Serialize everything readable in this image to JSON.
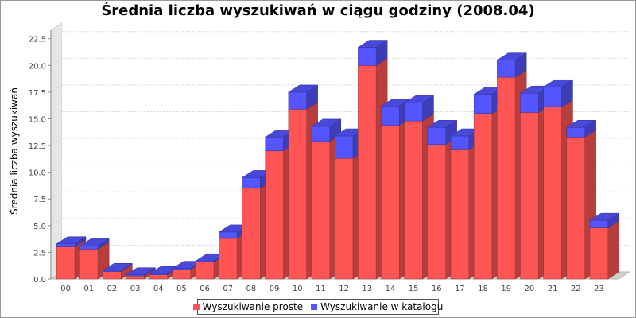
{
  "chart_data": {
    "type": "bar",
    "stacked": true,
    "style": "3d",
    "title": "Średnia liczba wyszukiwań w ciągu godziny (2008.04)",
    "xlabel": "",
    "ylabel": "Średnia liczba wyszukiwań",
    "ylim": [
      0,
      23.3
    ],
    "yticks": [
      "0.0",
      "2.5",
      "5.0",
      "7.5",
      "10.0",
      "12.5",
      "15.0",
      "17.5",
      "20.0",
      "22.5"
    ],
    "grid": true,
    "legend_position": "bottom",
    "categories": [
      "00",
      "01",
      "02",
      "03",
      "04",
      "05",
      "06",
      "07",
      "08",
      "09",
      "10",
      "11",
      "12",
      "13",
      "14",
      "15",
      "16",
      "17",
      "18",
      "19",
      "20",
      "21",
      "22",
      "23"
    ],
    "series": [
      {
        "name": "Wyszukiwanie proste",
        "color": "#ff5555",
        "values": [
          3.0,
          2.8,
          0.7,
          0.3,
          0.4,
          0.9,
          1.6,
          3.8,
          8.5,
          12.0,
          15.9,
          12.9,
          11.3,
          20.0,
          14.4,
          14.8,
          12.6,
          12.1,
          15.5,
          18.9,
          15.6,
          16.1,
          13.3,
          4.8
        ]
      },
      {
        "name": "Wyszukiwanie w katalogu",
        "color": "#5555ff",
        "values": [
          0.3,
          0.3,
          0.1,
          0.1,
          0.1,
          0.1,
          0.1,
          0.6,
          1.0,
          1.3,
          1.6,
          1.4,
          2.1,
          1.7,
          1.8,
          1.7,
          1.6,
          1.3,
          1.8,
          1.6,
          1.8,
          1.9,
          0.9,
          0.7
        ]
      }
    ]
  }
}
